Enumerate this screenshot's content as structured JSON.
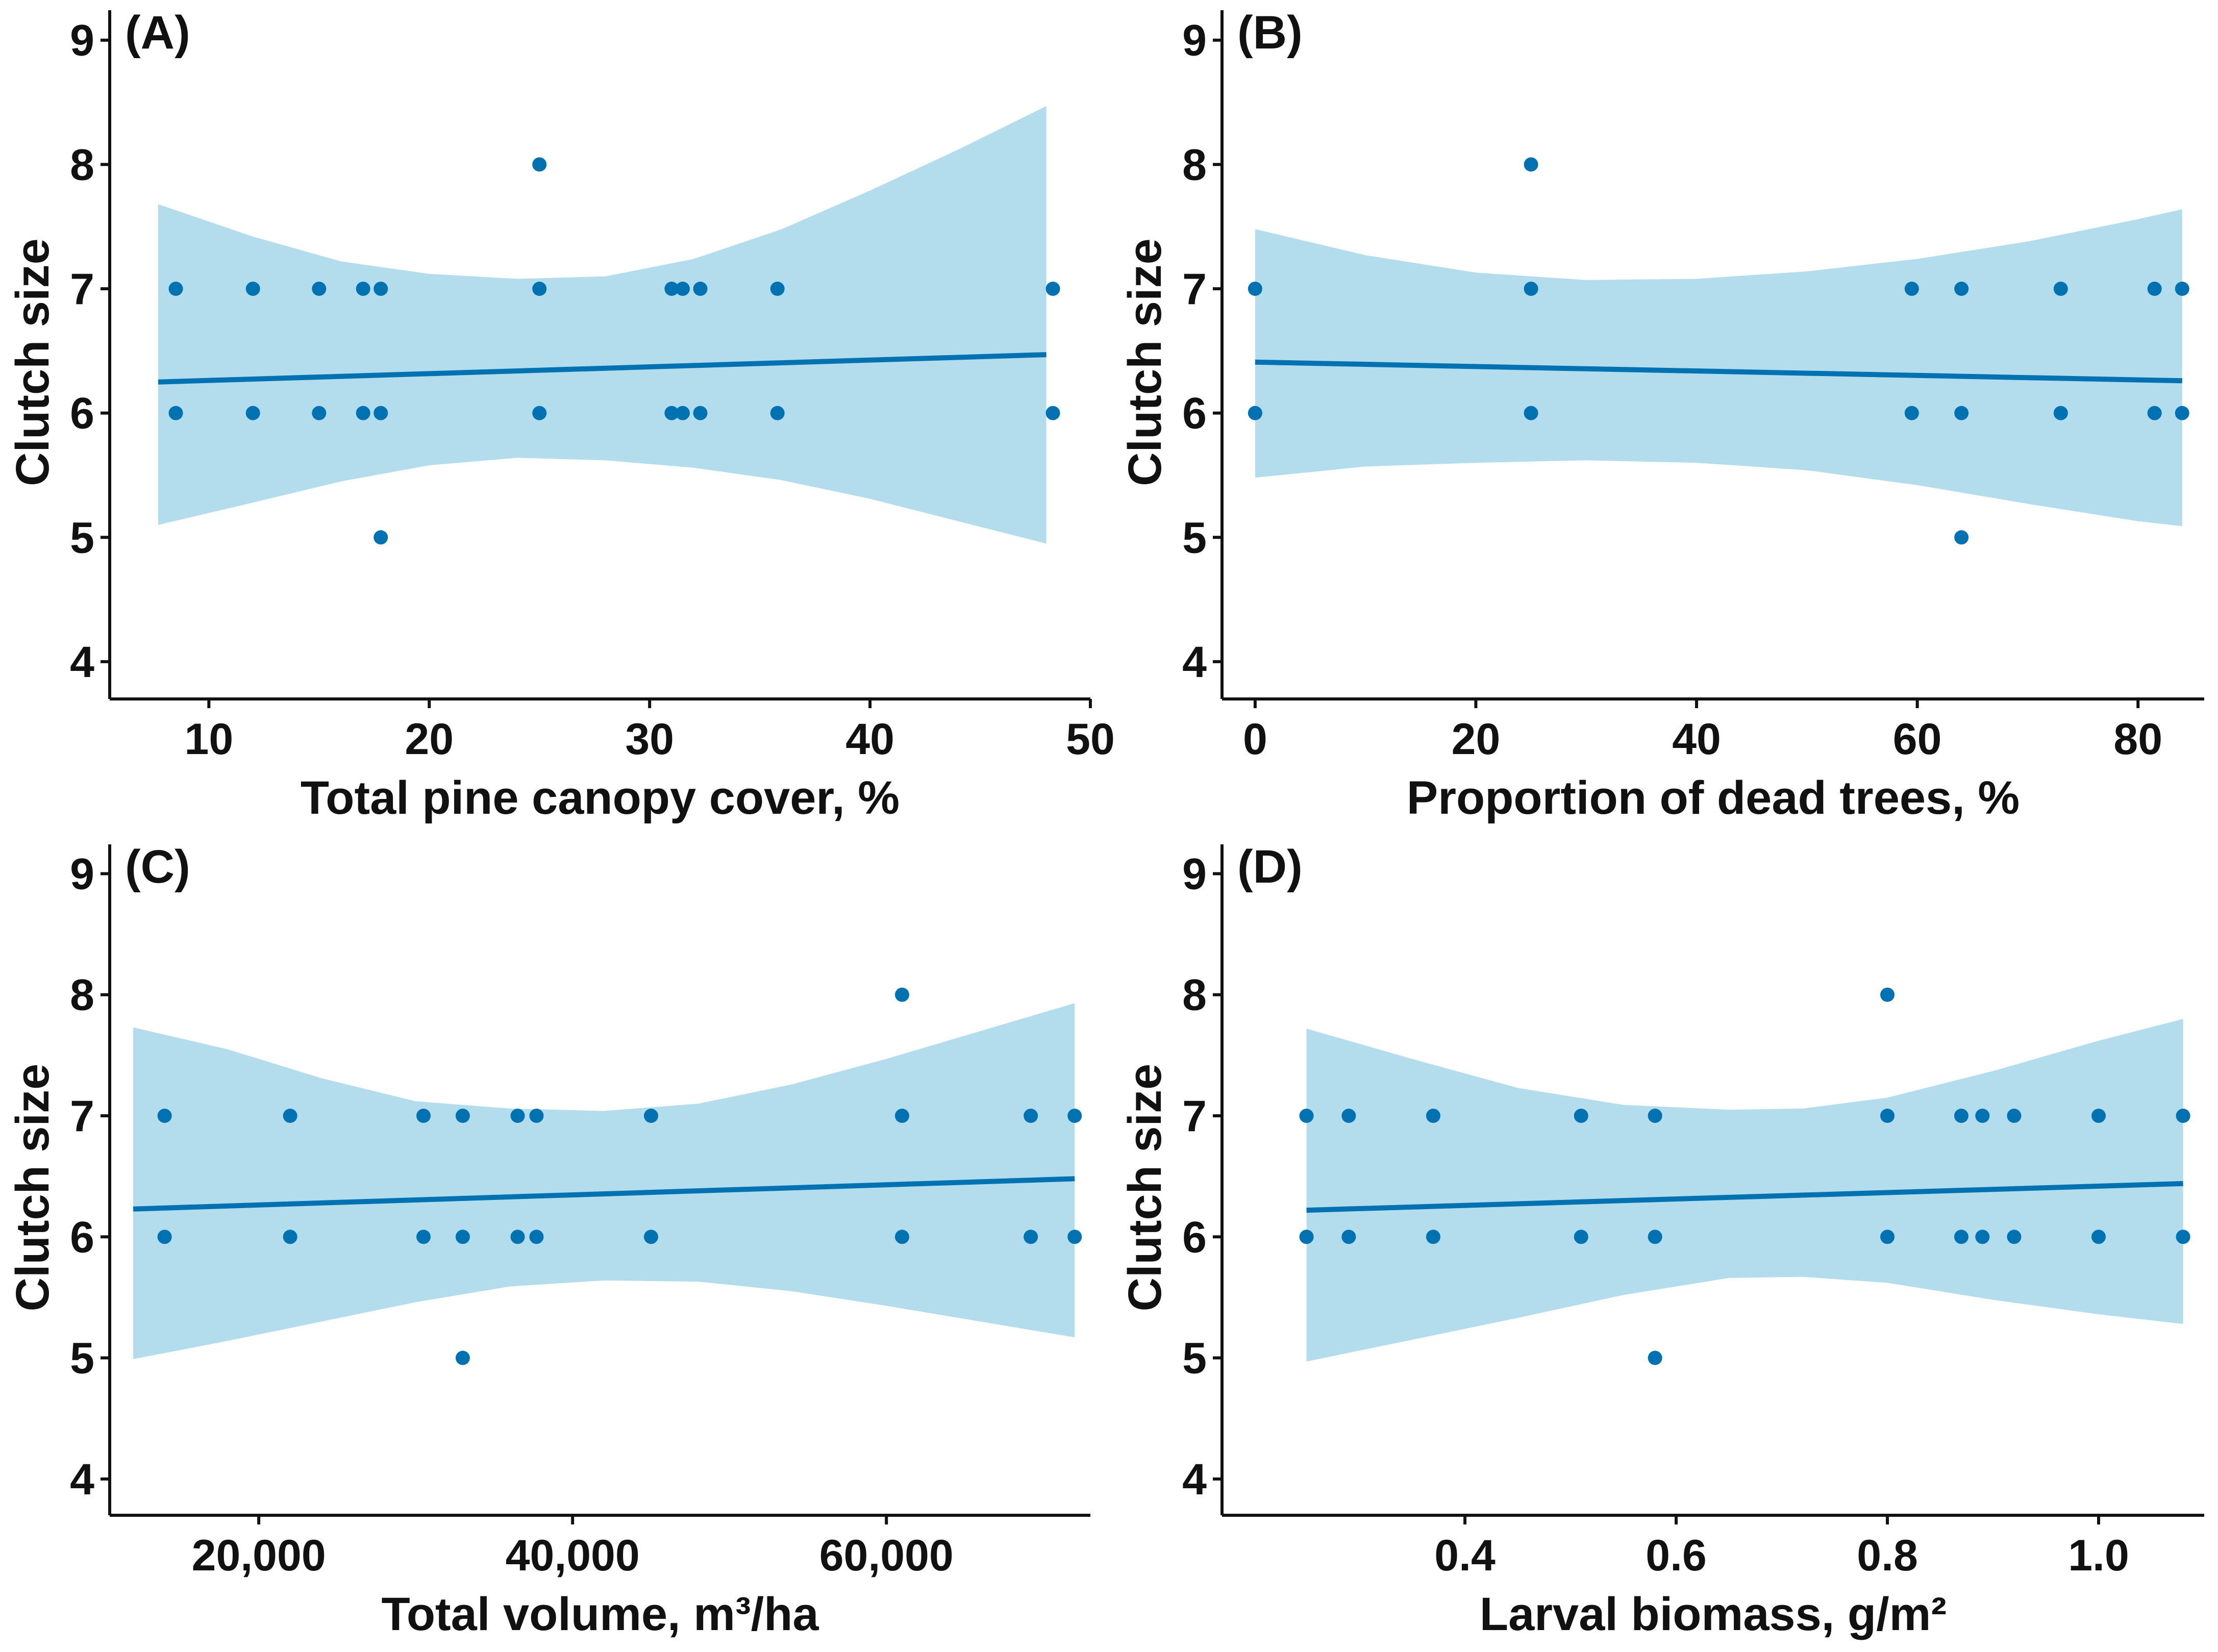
{
  "colors": {
    "band": "#b3dded",
    "line": "#0072b2",
    "point": "#0072b2",
    "axis": "#111111"
  },
  "chart_data": [
    {
      "panel": "(A)",
      "type": "scatter",
      "xlabel": "Total pine canopy cover, %",
      "ylabel": "Clutch size",
      "xlim": [
        5.5,
        50
      ],
      "ylim": [
        3.7,
        9.2
      ],
      "xticks": [
        10,
        20,
        30,
        40,
        50
      ],
      "xtick_labels": [
        "10",
        "20",
        "30",
        "40",
        "50"
      ],
      "yticks": [
        4,
        5,
        6,
        7,
        8,
        9
      ],
      "ytick_labels": [
        "4",
        "5",
        "6",
        "7",
        "8",
        "9"
      ],
      "points": [
        [
          8.5,
          7
        ],
        [
          8.5,
          6
        ],
        [
          12,
          7
        ],
        [
          12,
          6
        ],
        [
          15,
          7
        ],
        [
          15,
          6
        ],
        [
          17,
          7
        ],
        [
          17,
          6
        ],
        [
          17.8,
          7
        ],
        [
          17.8,
          6
        ],
        [
          17.8,
          5
        ],
        [
          25,
          8
        ],
        [
          25,
          7
        ],
        [
          25,
          6
        ],
        [
          31,
          7
        ],
        [
          31,
          6
        ],
        [
          31.5,
          7
        ],
        [
          31.5,
          6
        ],
        [
          32.3,
          7
        ],
        [
          32.3,
          6
        ],
        [
          35.8,
          7
        ],
        [
          35.8,
          6
        ],
        [
          48.3,
          7
        ],
        [
          48.3,
          6
        ]
      ],
      "fit": {
        "x": [
          7.7,
          48
        ],
        "y": [
          6.25,
          6.47
        ]
      },
      "band": {
        "x": [
          7.7,
          12,
          16,
          20,
          24,
          28,
          32,
          36,
          40,
          44,
          48
        ],
        "upper": [
          7.68,
          7.42,
          7.22,
          7.12,
          7.08,
          7.1,
          7.24,
          7.48,
          7.79,
          8.12,
          8.47
        ],
        "lower": [
          5.1,
          5.28,
          5.45,
          5.58,
          5.64,
          5.62,
          5.56,
          5.46,
          5.31,
          5.13,
          4.95
        ]
      }
    },
    {
      "panel": "(B)",
      "type": "scatter",
      "xlabel": "Proportion of dead trees, %",
      "ylabel": "Clutch size",
      "xlim": [
        -3,
        86
      ],
      "ylim": [
        3.7,
        9.2
      ],
      "xticks": [
        0,
        20,
        40,
        60,
        80
      ],
      "xtick_labels": [
        "0",
        "20",
        "40",
        "60",
        "80"
      ],
      "yticks": [
        4,
        5,
        6,
        7,
        8,
        9
      ],
      "ytick_labels": [
        "4",
        "5",
        "6",
        "7",
        "8",
        "9"
      ],
      "points": [
        [
          0,
          7
        ],
        [
          0,
          6
        ],
        [
          25,
          8
        ],
        [
          25,
          7
        ],
        [
          25,
          6
        ],
        [
          59.5,
          7
        ],
        [
          59.5,
          6
        ],
        [
          64,
          7
        ],
        [
          64,
          6
        ],
        [
          64,
          5
        ],
        [
          73,
          7
        ],
        [
          73,
          6
        ],
        [
          81.5,
          7
        ],
        [
          81.5,
          6
        ],
        [
          84,
          7
        ],
        [
          84,
          6
        ]
      ],
      "fit": {
        "x": [
          0,
          84
        ],
        "y": [
          6.41,
          6.26
        ]
      },
      "band": {
        "x": [
          0,
          10,
          20,
          30,
          40,
          50,
          60,
          70,
          80,
          84
        ],
        "upper": [
          7.48,
          7.27,
          7.13,
          7.07,
          7.08,
          7.14,
          7.24,
          7.38,
          7.56,
          7.64
        ],
        "lower": [
          5.48,
          5.57,
          5.6,
          5.62,
          5.6,
          5.54,
          5.42,
          5.27,
          5.13,
          5.09
        ]
      }
    },
    {
      "panel": "(C)",
      "type": "scatter",
      "xlabel": "Total volume, m³/ha",
      "ylabel": "Clutch size",
      "xlim": [
        10500,
        73000
      ],
      "ylim": [
        3.7,
        9.2
      ],
      "xticks": [
        20000,
        40000,
        60000
      ],
      "xtick_labels": [
        "20,000",
        "40,000",
        "60,000"
      ],
      "yticks": [
        4,
        5,
        6,
        7,
        8,
        9
      ],
      "ytick_labels": [
        "4",
        "5",
        "6",
        "7",
        "8",
        "9"
      ],
      "points": [
        [
          14000,
          7
        ],
        [
          14000,
          6
        ],
        [
          22000,
          7
        ],
        [
          22000,
          6
        ],
        [
          30500,
          7
        ],
        [
          30500,
          6
        ],
        [
          33000,
          7
        ],
        [
          33000,
          6
        ],
        [
          33000,
          5
        ],
        [
          36500,
          7
        ],
        [
          36500,
          6
        ],
        [
          37700,
          7
        ],
        [
          37700,
          6
        ],
        [
          45000,
          7
        ],
        [
          45000,
          6
        ],
        [
          61000,
          8
        ],
        [
          61000,
          7
        ],
        [
          61000,
          6
        ],
        [
          69200,
          7
        ],
        [
          69200,
          6
        ],
        [
          72000,
          7
        ],
        [
          72000,
          6
        ]
      ],
      "fit": {
        "x": [
          12000,
          72000
        ],
        "y": [
          6.23,
          6.48
        ]
      },
      "band": {
        "x": [
          12000,
          18000,
          24000,
          30000,
          36000,
          42000,
          48000,
          54000,
          60000,
          66000,
          72000
        ],
        "upper": [
          7.73,
          7.55,
          7.31,
          7.12,
          7.06,
          7.04,
          7.1,
          7.26,
          7.47,
          7.7,
          7.93
        ],
        "lower": [
          4.99,
          5.14,
          5.3,
          5.46,
          5.59,
          5.64,
          5.63,
          5.55,
          5.43,
          5.3,
          5.17
        ]
      }
    },
    {
      "panel": "(D)",
      "type": "scatter",
      "xlabel": "Larval biomass, g/m²",
      "ylabel": "Clutch size",
      "xlim": [
        0.17,
        1.1
      ],
      "ylim": [
        3.7,
        9.2
      ],
      "xticks": [
        0.4,
        0.6,
        0.8,
        1.0
      ],
      "xtick_labels": [
        "0.4",
        "0.6",
        "0.8",
        "1.0"
      ],
      "yticks": [
        4,
        5,
        6,
        7,
        8,
        9
      ],
      "ytick_labels": [
        "4",
        "5",
        "6",
        "7",
        "8",
        "9"
      ],
      "points": [
        [
          0.25,
          7
        ],
        [
          0.25,
          6
        ],
        [
          0.29,
          7
        ],
        [
          0.29,
          6
        ],
        [
          0.37,
          7
        ],
        [
          0.37,
          6
        ],
        [
          0.51,
          7
        ],
        [
          0.51,
          6
        ],
        [
          0.58,
          7
        ],
        [
          0.58,
          6
        ],
        [
          0.58,
          5
        ],
        [
          0.8,
          8
        ],
        [
          0.8,
          7
        ],
        [
          0.8,
          6
        ],
        [
          0.87,
          7
        ],
        [
          0.87,
          6
        ],
        [
          0.89,
          7
        ],
        [
          0.89,
          6
        ],
        [
          0.92,
          7
        ],
        [
          0.92,
          6
        ],
        [
          1.0,
          7
        ],
        [
          1.0,
          6
        ],
        [
          1.08,
          7
        ],
        [
          1.08,
          6
        ]
      ],
      "fit": {
        "x": [
          0.25,
          1.08
        ],
        "y": [
          6.22,
          6.44
        ]
      },
      "band": {
        "x": [
          0.25,
          0.35,
          0.45,
          0.55,
          0.65,
          0.72,
          0.8,
          0.9,
          1.0,
          1.08
        ],
        "upper": [
          7.72,
          7.47,
          7.23,
          7.09,
          7.05,
          7.06,
          7.15,
          7.37,
          7.62,
          7.8
        ],
        "lower": [
          4.97,
          5.15,
          5.33,
          5.52,
          5.66,
          5.67,
          5.62,
          5.48,
          5.36,
          5.28
        ]
      }
    }
  ]
}
